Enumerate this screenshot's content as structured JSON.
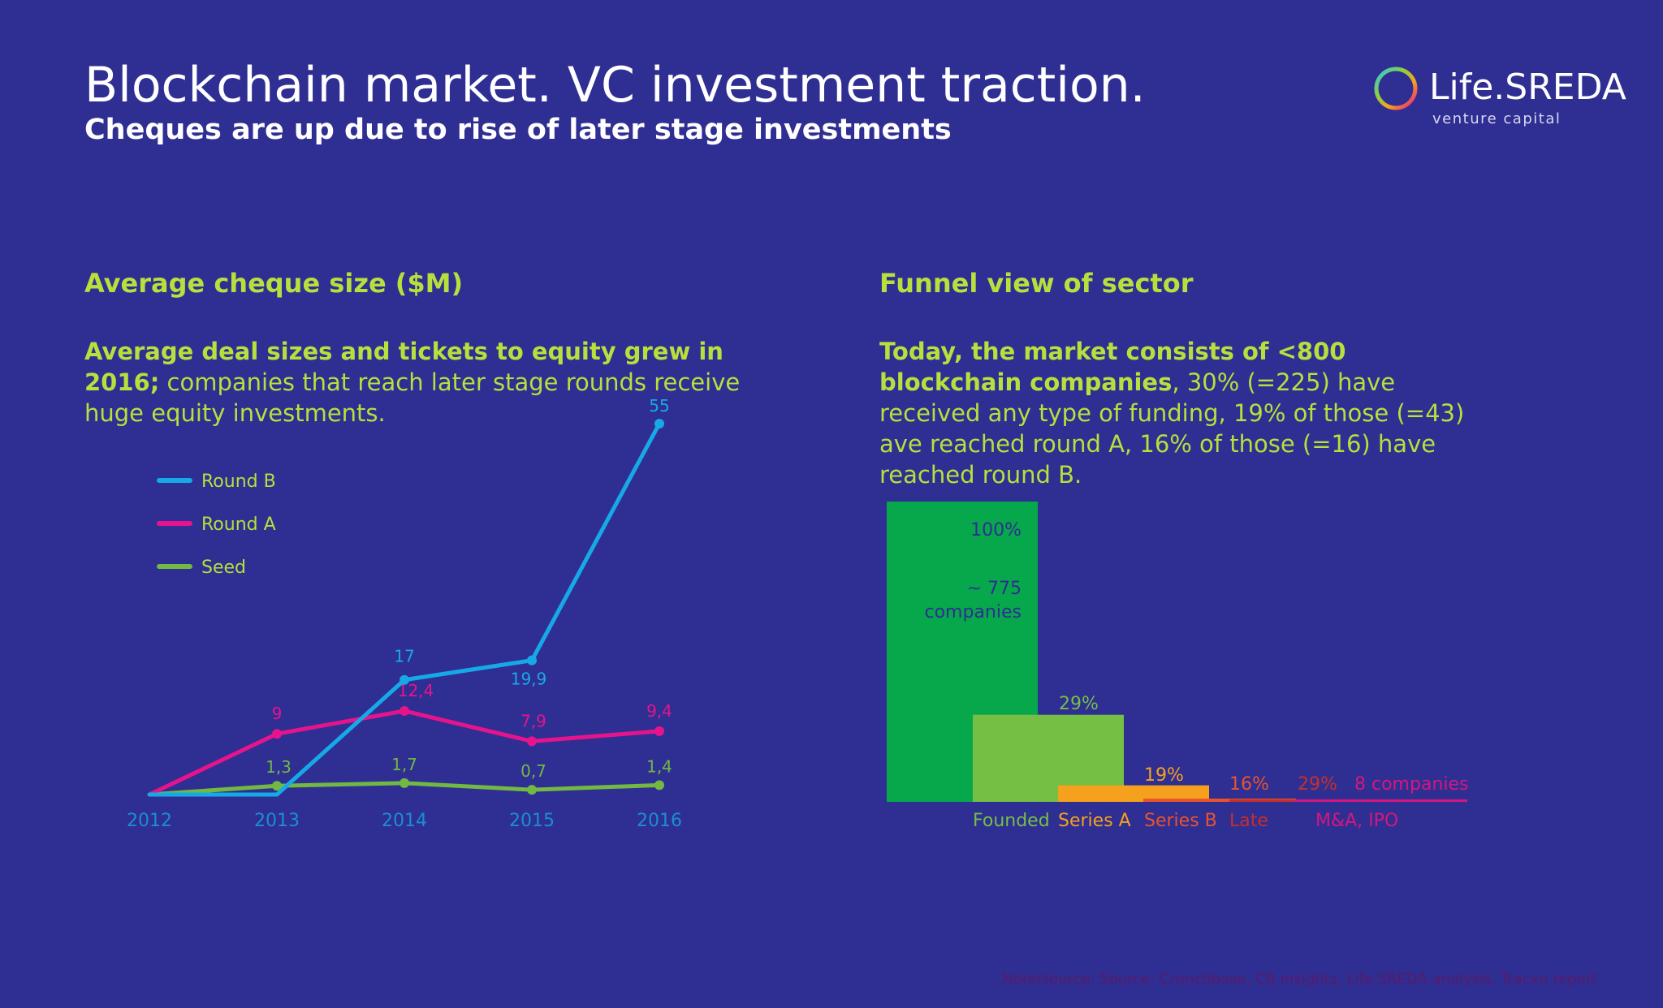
{
  "header": {
    "title": "Blockchain market. VC investment traction.",
    "subtitle": "Cheques are up due to rise of later stage investments"
  },
  "logo": {
    "name_main": "Life.",
    "name_bold": "SREDA",
    "tagline": "venture capital"
  },
  "left_section": {
    "title": "Average cheque size ($M)",
    "desc_lead": "Average deal sizes and tickets to equity grew in 2016;",
    "desc_rest": "companies that reach later stage rounds receive huge equity investments."
  },
  "right_section": {
    "title": "Funnel view of sector",
    "desc_lead": "Today, the market consists of <800 blockchain companies",
    "desc_rest": ", 30% (=225) have received any type of funding, 19% of those (=43) ave reached round A, 16% of those (=16) have reached round B."
  },
  "colors": {
    "background": "#2f2e92",
    "round_b": "#17a9e6",
    "round_a": "#e6148c",
    "seed": "#72b843",
    "accent_text": "#b8df3c",
    "founded": "#07a84c",
    "funded": "#74bf44",
    "series_a": "#f6a11d",
    "series_b": "#e8542d",
    "late": "#c5302b",
    "ma_ipo": "#d4177f",
    "note": "#5a1a6a"
  },
  "chart_data": [
    {
      "type": "line",
      "title": "Average cheque size ($M)",
      "x": [
        "2012",
        "2013",
        "2014",
        "2015",
        "2016"
      ],
      "series": [
        {
          "name": "Round B",
          "color": "#17a9e6",
          "values": [
            0,
            0,
            17,
            19.9,
            55
          ],
          "labels": [
            "",
            "",
            "17",
            "19,9",
            "55"
          ]
        },
        {
          "name": "Round A",
          "color": "#e6148c",
          "values": [
            0,
            9,
            12.4,
            7.9,
            9.4
          ],
          "labels": [
            "",
            "9",
            "12,4",
            "7,9",
            "9,4"
          ]
        },
        {
          "name": "Seed",
          "color": "#72b843",
          "values": [
            0,
            1.3,
            1.7,
            0.7,
            1.4
          ],
          "labels": [
            "",
            "1,3",
            "1,7",
            "0,7",
            "1,4"
          ]
        }
      ],
      "ylim": [
        0,
        60
      ],
      "legend": "left"
    },
    {
      "type": "bar",
      "title": "Funnel view of sector",
      "categories": [
        "Founded",
        "",
        "Series A",
        "Series B",
        "Late",
        "M&A, IPO"
      ],
      "values": [
        100,
        29,
        5.5,
        1.0,
        0.16,
        0.05
      ],
      "top_labels": [
        "",
        "29%",
        "19%",
        "16%",
        "29%",
        "8 companies"
      ],
      "founded_percent_label": "100%",
      "founded_count_label": "~ 775",
      "founded_unit_label": "companies",
      "colors": [
        "#07a84c",
        "#74bf44",
        "#f6a11d",
        "#e8542d",
        "#c5302b",
        "#d4177f"
      ],
      "category_colors": [
        "#74bf44",
        "#74bf44",
        "#f6a11d",
        "#e8542d",
        "#c5302b",
        "#d4177f"
      ]
    }
  ],
  "footer": {
    "note": "Note/source: Source: Crunchbase, CB insights, Life.SREDA analysis, Tracxn report"
  }
}
